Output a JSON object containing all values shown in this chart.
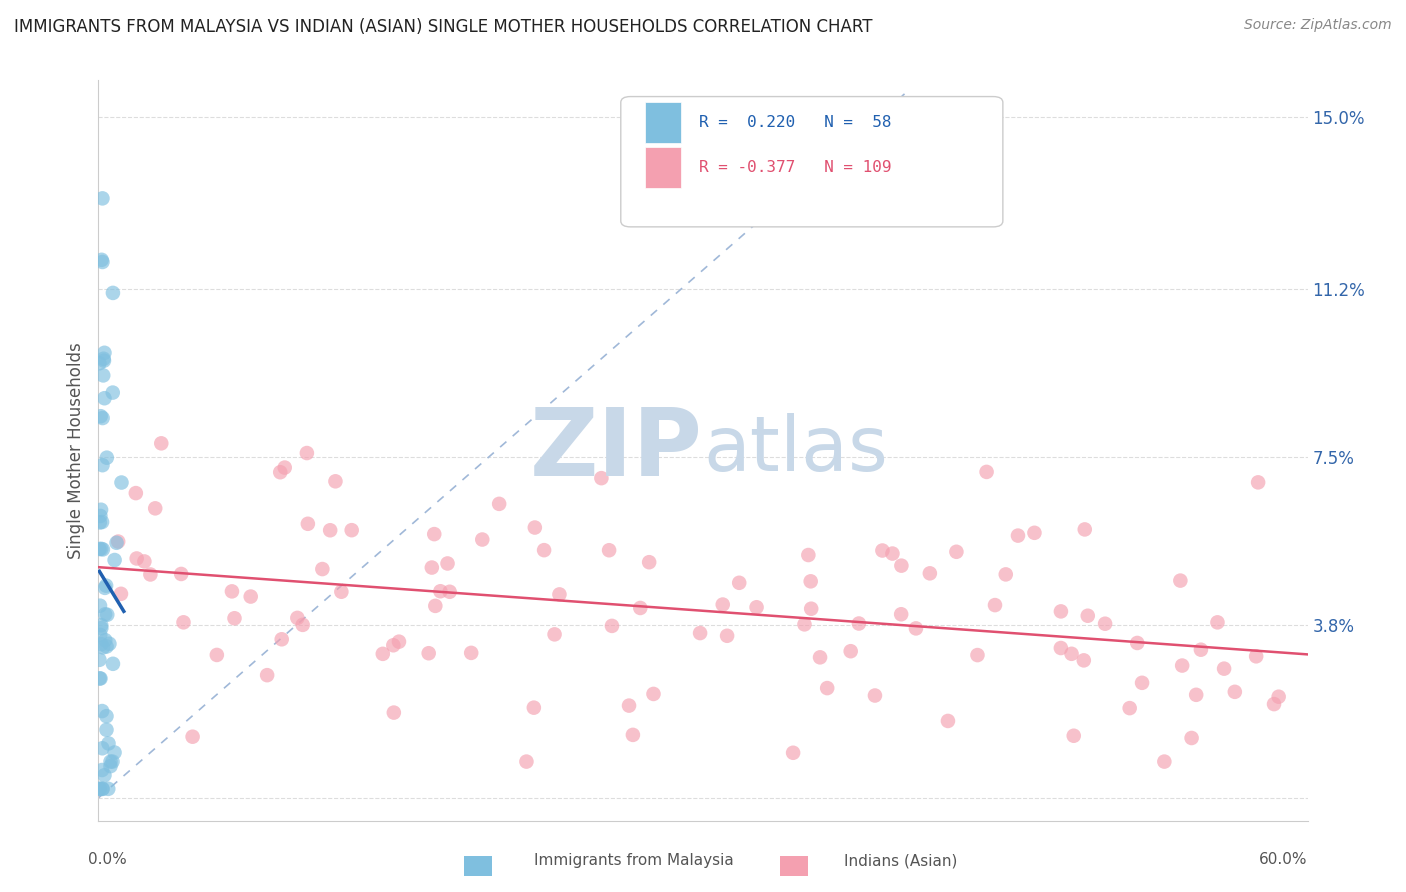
{
  "title": "IMMIGRANTS FROM MALAYSIA VS INDIAN (ASIAN) SINGLE MOTHER HOUSEHOLDS CORRELATION CHART",
  "source": "Source: ZipAtlas.com",
  "ylabel": "Single Mother Households",
  "ytick_vals": [
    0.0,
    0.038,
    0.075,
    0.112,
    0.15
  ],
  "ytick_labels": [
    "",
    "3.8%",
    "7.5%",
    "11.2%",
    "15.0%"
  ],
  "xlim": [
    0.0,
    0.6
  ],
  "ylim": [
    -0.005,
    0.158
  ],
  "blue_R": 0.22,
  "blue_N": 58,
  "pink_R": -0.377,
  "pink_N": 109,
  "blue_color": "#7fbfdf",
  "pink_color": "#f4a0b0",
  "blue_line_color": "#2060b0",
  "pink_line_color": "#e05070",
  "diag_color": "#a0b8d8",
  "legend_label_blue": "Immigrants from Malaysia",
  "legend_label_pink": "Indians (Asian)",
  "watermark_zip": "ZIP",
  "watermark_atlas": "atlas",
  "watermark_color": "#c8d8e8"
}
